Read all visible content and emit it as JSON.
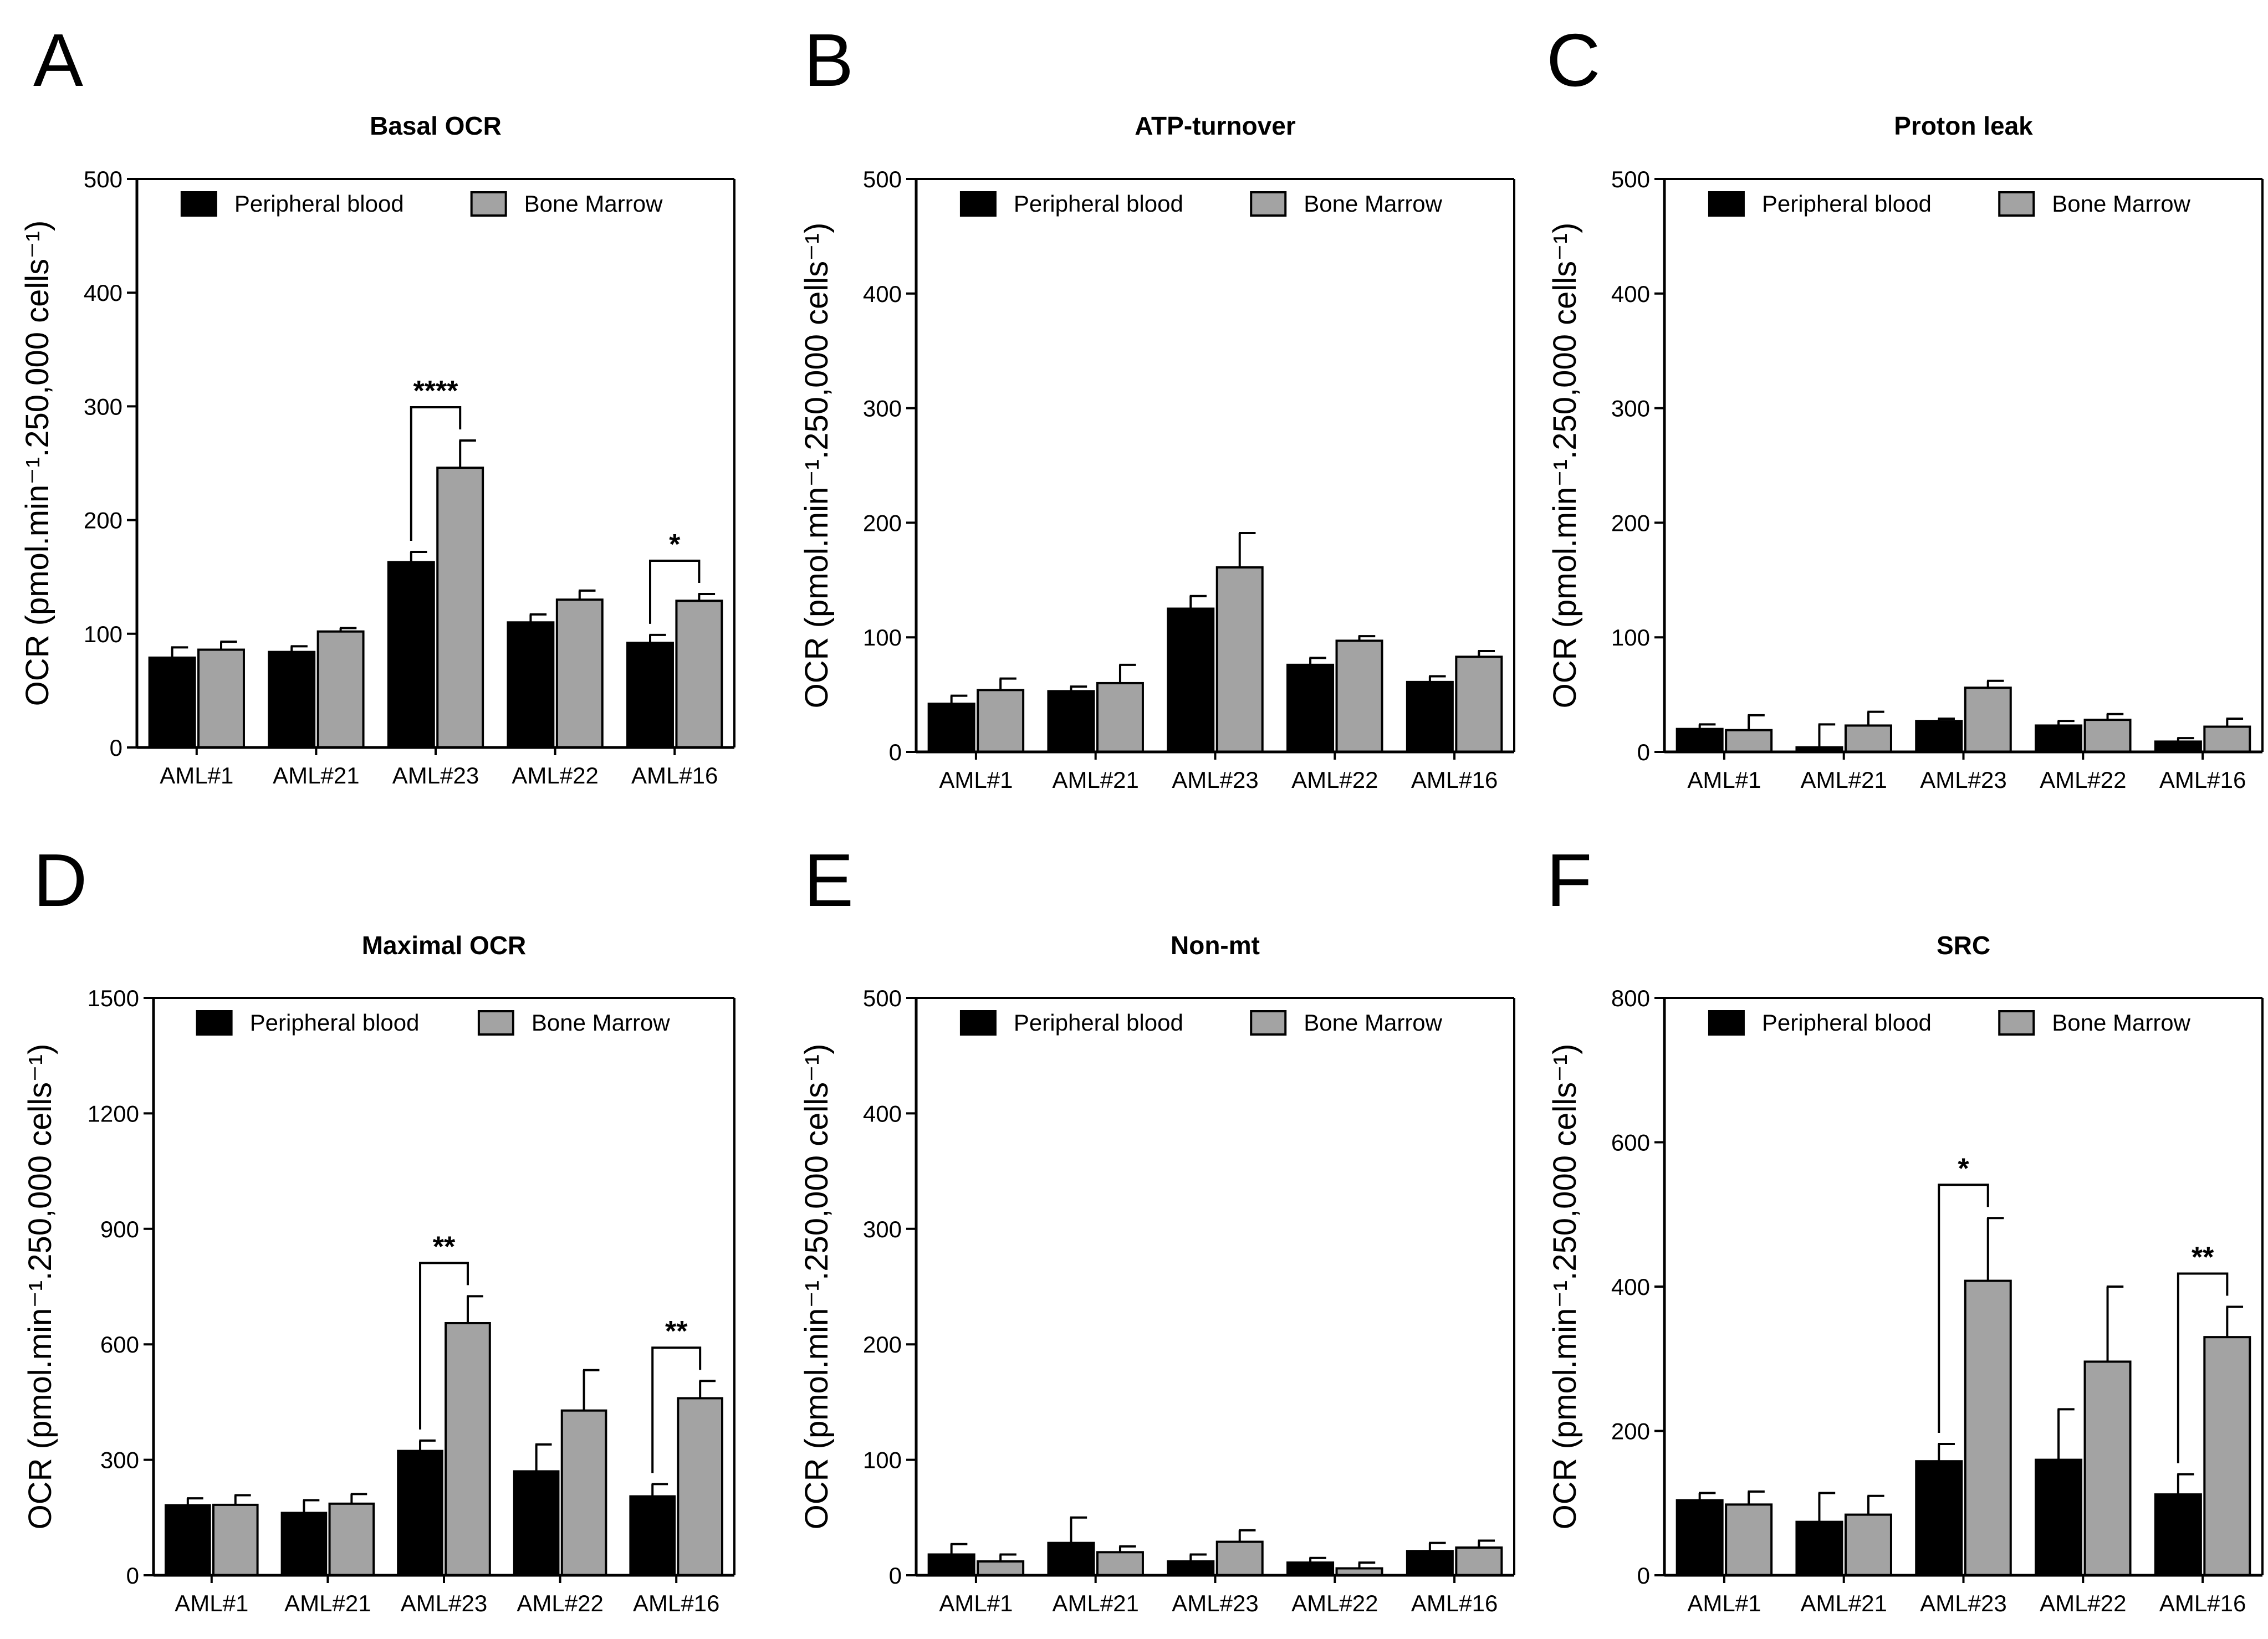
{
  "colors": {
    "peripheral_blood": "#000000",
    "bone_marrow": "#a3a3a3",
    "axis": "#000000"
  },
  "chart_data": [
    {
      "panel": "A",
      "type": "bar",
      "title": "Basal OCR",
      "ylabel": "OCR (pmol.min⁻¹.250,000 cells⁻¹)",
      "ylim": [
        0,
        500
      ],
      "yticks": [
        0,
        100,
        200,
        300,
        400,
        500
      ],
      "categories": [
        "AML#1",
        "AML#21",
        "AML#23",
        "AML#22",
        "AML#16"
      ],
      "legend_position": "top",
      "series": [
        {
          "name": "Peripheral blood",
          "values": [
            79,
            84,
            163,
            110,
            92
          ],
          "errors": [
            9,
            5,
            9,
            7,
            7
          ]
        },
        {
          "name": "Bone Marrow",
          "values": [
            86,
            102,
            246,
            130,
            129
          ],
          "errors": [
            7,
            3,
            24,
            8,
            6
          ]
        }
      ],
      "significance": [
        {
          "category": 2,
          "label": "****"
        },
        {
          "category": 4,
          "label": "*"
        }
      ]
    },
    {
      "panel": "B",
      "type": "bar",
      "title": "ATP-turnover",
      "ylabel": "OCR (pmol.min⁻¹.250,000 cells⁻¹)",
      "ylim": [
        0,
        500
      ],
      "yticks": [
        0,
        100,
        200,
        300,
        400,
        500
      ],
      "categories": [
        "AML#1",
        "AML#21",
        "AML#23",
        "AML#22",
        "AML#16"
      ],
      "legend_position": "top",
      "series": [
        {
          "name": "Peripheral blood",
          "values": [
            42,
            53,
            125,
            76,
            61
          ],
          "errors": [
            7,
            4,
            11,
            6,
            5
          ]
        },
        {
          "name": "Bone Marrow",
          "values": [
            54,
            60,
            161,
            97,
            83
          ],
          "errors": [
            10,
            16,
            30,
            4,
            5
          ]
        }
      ],
      "significance": []
    },
    {
      "panel": "C",
      "type": "bar",
      "title": "Proton leak",
      "ylabel": "OCR (pmol.min⁻¹.250,000 cells⁻¹)",
      "ylim": [
        0,
        500
      ],
      "yticks": [
        0,
        100,
        200,
        300,
        400,
        500
      ],
      "categories": [
        "AML#1",
        "AML#21",
        "AML#23",
        "AML#22",
        "AML#16"
      ],
      "legend_position": "top",
      "series": [
        {
          "name": "Peripheral blood",
          "values": [
            20,
            4,
            27,
            23,
            9
          ],
          "errors": [
            4,
            20,
            2,
            4,
            3
          ]
        },
        {
          "name": "Bone Marrow",
          "values": [
            19,
            23,
            56,
            28,
            22
          ],
          "errors": [
            13,
            12,
            6,
            5,
            7
          ]
        }
      ],
      "significance": []
    },
    {
      "panel": "D",
      "type": "bar",
      "title": "Maximal OCR",
      "ylabel": "OCR (pmol.min⁻¹.250,000 cells⁻¹)",
      "ylim": [
        0,
        1500
      ],
      "yticks": [
        0,
        300,
        600,
        900,
        1200,
        1500
      ],
      "categories": [
        "AML#1",
        "AML#21",
        "AML#23",
        "AML#22",
        "AML#16"
      ],
      "legend_position": "top",
      "series": [
        {
          "name": "Peripheral blood",
          "values": [
            182,
            162,
            323,
            270,
            205
          ],
          "errors": [
            18,
            33,
            27,
            70,
            32
          ]
        },
        {
          "name": "Bone Marrow",
          "values": [
            183,
            186,
            655,
            428,
            460
          ],
          "errors": [
            25,
            25,
            70,
            105,
            45
          ]
        }
      ],
      "significance": [
        {
          "category": 2,
          "label": "**"
        },
        {
          "category": 4,
          "label": "**"
        }
      ]
    },
    {
      "panel": "E",
      "type": "bar",
      "title": "Non-mt",
      "ylabel": "OCR (pmol.min⁻¹.250,000 cells⁻¹)",
      "ylim": [
        0,
        500
      ],
      "yticks": [
        0,
        100,
        200,
        300,
        400,
        500
      ],
      "categories": [
        "AML#1",
        "AML#21",
        "AML#23",
        "AML#22",
        "AML#16"
      ],
      "legend_position": "top",
      "series": [
        {
          "name": "Peripheral blood",
          "values": [
            18,
            28,
            12,
            11,
            21
          ],
          "errors": [
            9,
            22,
            6,
            4,
            7
          ]
        },
        {
          "name": "Bone Marrow",
          "values": [
            12,
            20,
            29,
            6,
            24
          ],
          "errors": [
            6,
            5,
            10,
            5,
            6
          ]
        }
      ],
      "significance": []
    },
    {
      "panel": "F",
      "type": "bar",
      "title": "SRC",
      "ylabel": "OCR (pmol.min⁻¹.250,000 cells⁻¹)",
      "ylim": [
        0,
        800
      ],
      "yticks": [
        0,
        200,
        400,
        600,
        800
      ],
      "categories": [
        "AML#1",
        "AML#21",
        "AML#23",
        "AML#22",
        "AML#16"
      ],
      "legend_position": "top",
      "series": [
        {
          "name": "Peripheral blood",
          "values": [
            104,
            74,
            158,
            160,
            112
          ],
          "errors": [
            10,
            40,
            24,
            70,
            28
          ]
        },
        {
          "name": "Bone Marrow",
          "values": [
            98,
            84,
            408,
            296,
            330
          ],
          "errors": [
            18,
            26,
            87,
            104,
            42
          ]
        }
      ],
      "significance": [
        {
          "category": 2,
          "label": "*"
        },
        {
          "category": 4,
          "label": "**"
        }
      ]
    }
  ]
}
